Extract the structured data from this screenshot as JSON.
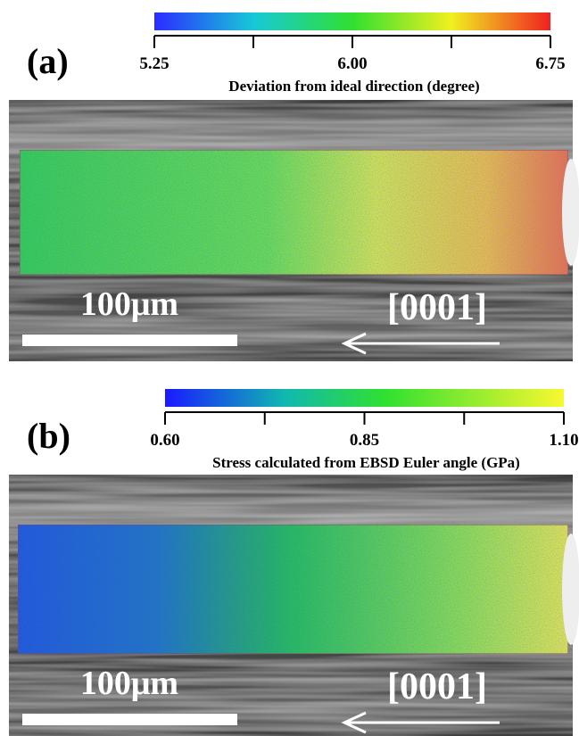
{
  "panels": [
    {
      "label": "(a)",
      "colorbar": {
        "ticks": [
          5.25,
          {
            "value": 6,
            "label": "6.00"
          },
          6.75
        ],
        "title": "Deviation from ideal direction (degree)"
      },
      "scale_bar": "100μm",
      "direction": "[0001]"
    },
    {
      "label": "(b)",
      "colorbar": {
        "ticks": [
          {
            "value": 0.6,
            "label": "0.60"
          },
          0.85,
          {
            "value": 1.1,
            "label": "1.10"
          }
        ],
        "title": "Stress calculated  from EBSD Euler angle (GPa)"
      },
      "scale_bar": "100μm",
      "direction": "[0001]"
    }
  ]
}
